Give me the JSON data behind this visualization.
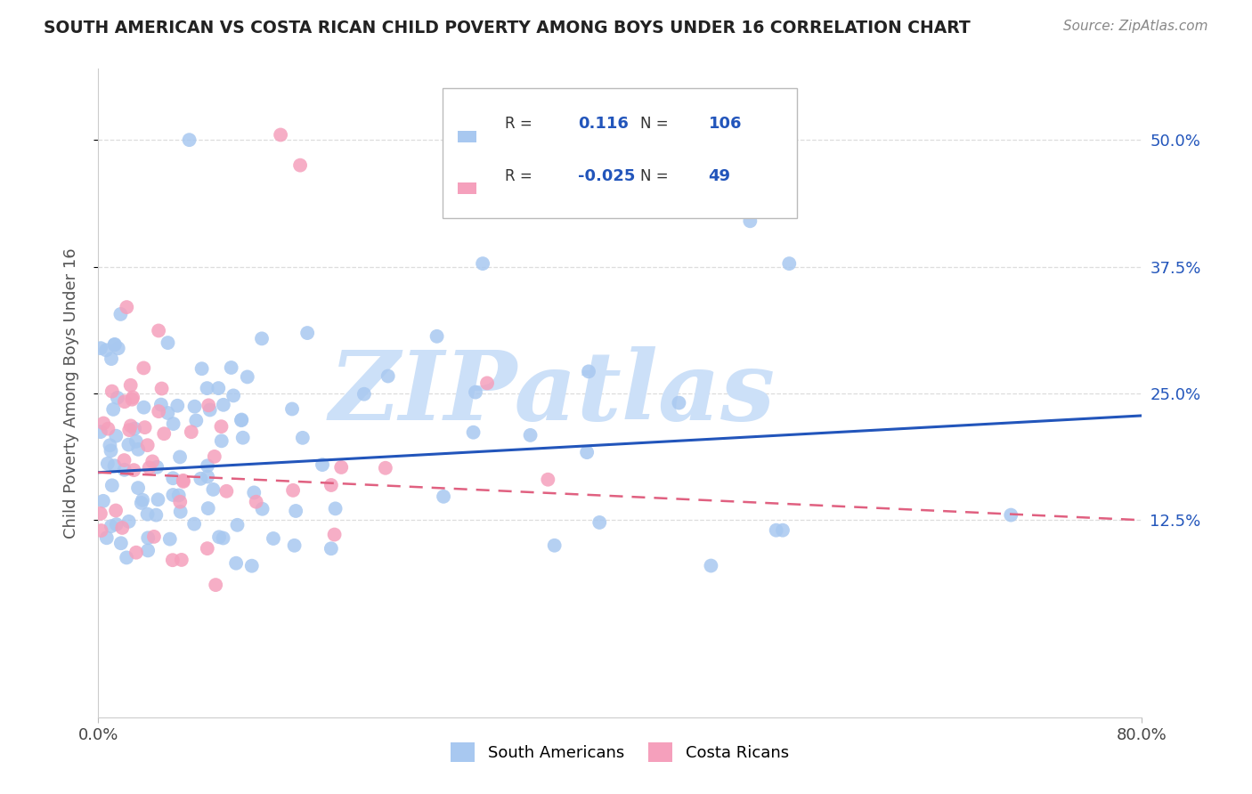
{
  "title": "SOUTH AMERICAN VS COSTA RICAN CHILD POVERTY AMONG BOYS UNDER 16 CORRELATION CHART",
  "source": "Source: ZipAtlas.com",
  "ylabel": "Child Poverty Among Boys Under 16",
  "xlim": [
    0.0,
    0.8
  ],
  "ylim": [
    -0.07,
    0.57
  ],
  "ytick_positions": [
    0.125,
    0.25,
    0.375,
    0.5
  ],
  "ytick_labels": [
    "12.5%",
    "25.0%",
    "37.5%",
    "50.0%"
  ],
  "blue_color": "#a8c8f0",
  "pink_color": "#f5a0bc",
  "blue_line_color": "#2255bb",
  "pink_line_color": "#e06080",
  "blue_line_y0": 0.172,
  "blue_line_y1": 0.228,
  "pink_line_y0": 0.172,
  "pink_line_y1": 0.125,
  "R_blue": 0.116,
  "N_blue": 106,
  "R_pink": -0.025,
  "N_pink": 49,
  "watermark": "ZIPatlas",
  "watermark_color": "#cce0f8",
  "grid_color": "#dddddd",
  "background_color": "#ffffff",
  "title_color": "#222222",
  "axis_label_color": "#555555",
  "tick_label_color_blue": "#2255bb",
  "legend_label_blue": "South Americans",
  "legend_label_pink": "Costa Ricans",
  "legend_R_color": "#333333",
  "legend_box_edge": "#bbbbbb"
}
